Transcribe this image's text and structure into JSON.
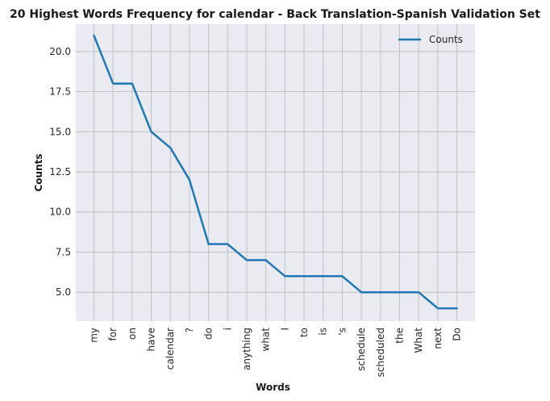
{
  "chart_data": {
    "type": "line",
    "title": "20 Highest Words Frequency for calendar - Back Translation-Spanish Validation Set",
    "xlabel": "Words",
    "ylabel": "Counts",
    "categories": [
      "my",
      "for",
      "on",
      "have",
      "calendar",
      "?",
      "do",
      "i",
      "anything",
      "what",
      "I",
      "to",
      "is",
      "'s",
      "schedule",
      "scheduled",
      "the",
      "What",
      "next",
      "Do"
    ],
    "series": [
      {
        "name": "Counts",
        "values": [
          21,
          18,
          18,
          15,
          14,
          12,
          8,
          8,
          7,
          7,
          6,
          6,
          6,
          6,
          5,
          5,
          5,
          5,
          4,
          4
        ],
        "color": "#1f77b4"
      }
    ],
    "ylim": [
      3.2,
      21.7
    ],
    "yticks": [
      5.0,
      7.5,
      10.0,
      12.5,
      15.0,
      17.5,
      20.0
    ],
    "grid": true,
    "legend": "upper right",
    "colors": {
      "background": "#eaeaf2",
      "grid": "#c0c0c0"
    }
  }
}
